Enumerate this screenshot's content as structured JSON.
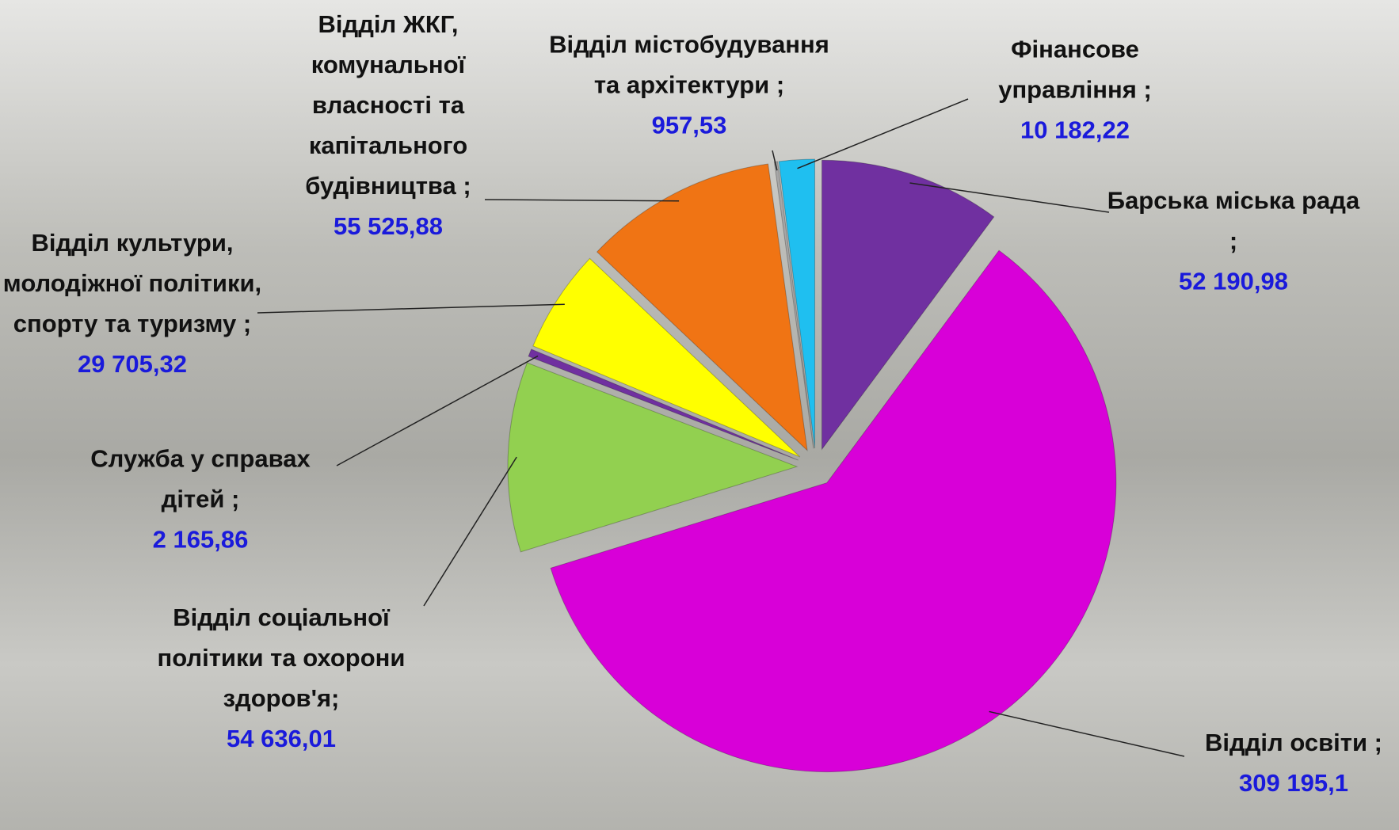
{
  "chart_data": {
    "type": "pie",
    "categories": [
      "Барська міська рада ;",
      "Відділ освіти ;",
      "Відділ соціальної політики та охорони здоров'я;",
      "Служба у справах дітей ;",
      "Відділ культури, молодіжної політики, спорту та туризму ;",
      "Відділ ЖКГ, комунальної власності та капітального будівництва ;",
      "Відділ містобудування та архітектури ;",
      "Фінансове управління ;"
    ],
    "values": [
      52190.98,
      309195.1,
      54636.01,
      2165.86,
      29705.32,
      55525.88,
      957.53,
      10182.22
    ],
    "value_labels": [
      "52 190,98",
      "309 195,1",
      "54 636,01",
      "2 165,86",
      "29 705,32",
      "55 525,88",
      "957,53",
      "10 182,22"
    ],
    "colors": [
      "#7030a0",
      "#d800d8",
      "#92d050",
      "#7030a0",
      "#ffff00",
      "#f07414",
      "#a6a6a6",
      "#1fbff0"
    ]
  }
}
